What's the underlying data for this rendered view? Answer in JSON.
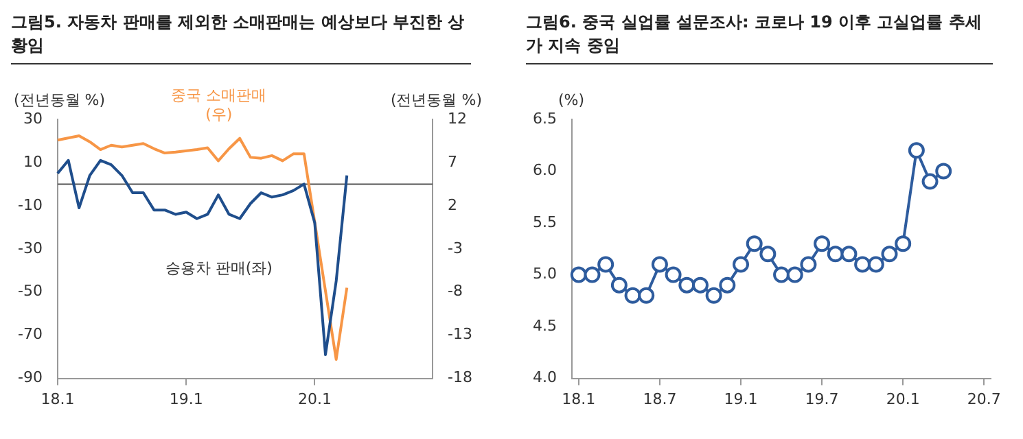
{
  "chart_data": [
    {
      "type": "line",
      "title": "그림5. 자동차 판매를 제외한 소매판매는 예상보다 부진한 상황임",
      "ylabel": "(전년동월 %)",
      "y2label": "(전년동월 %)",
      "categories": [
        "18.1",
        null,
        null,
        null,
        null,
        null,
        null,
        null,
        null,
        null,
        null,
        null,
        "19.1",
        null,
        null,
        null,
        null,
        null,
        null,
        null,
        null,
        null,
        null,
        null,
        "20.1",
        null,
        null,
        null,
        null,
        null,
        null,
        null,
        null,
        null,
        null,
        null
      ],
      "series": [
        {
          "name": "승용차 판매(좌)",
          "color": "#1f4e8c",
          "values": [
            5,
            11,
            -11,
            4,
            11,
            9,
            4,
            -4,
            -4,
            -12,
            -12,
            -14,
            -13,
            -16,
            -14,
            -5,
            -14,
            -16,
            -9,
            -4,
            -6,
            -5,
            -3,
            0,
            -18,
            -79,
            -45,
            4,
            null,
            null,
            null,
            null,
            null,
            null,
            null,
            null
          ]
        },
        {
          "name": "중국 소매판매 (우)",
          "color": "#f79646",
          "axis": "y2",
          "values": [
            9.6,
            null,
            10.1,
            9.4,
            8.5,
            9.0,
            8.8,
            9.0,
            9.2,
            8.6,
            8.1,
            8.2,
            null,
            8.5,
            8.7,
            7.2,
            8.6,
            9.8,
            7.6,
            7.5,
            7.8,
            7.2,
            8.0,
            8.0,
            null,
            null,
            -15.8,
            -7.5,
            null,
            null,
            null,
            null,
            null,
            null,
            null,
            null
          ]
        }
      ],
      "ylim": [
        -90,
        30
      ],
      "yticks": [
        -90,
        -70,
        -50,
        -30,
        -10,
        10,
        30
      ],
      "y2lim": [
        -18,
        12
      ],
      "y2ticks": [
        -18,
        -13,
        -8,
        -3,
        2,
        7,
        12
      ],
      "ref_lines": [
        {
          "axis": "y",
          "value": 0,
          "color": "#555555"
        }
      ],
      "grid": false,
      "legend": false,
      "marker": "none",
      "line_style": "solid"
    },
    {
      "type": "line",
      "title": "그림6. 중국 실업률 설문조사: 코로나 19 이후 고실업률 추세가 지속 중임",
      "ylabel": "(%)",
      "categories": [
        "18.1",
        null,
        null,
        null,
        null,
        null,
        "18.7",
        null,
        null,
        null,
        null,
        null,
        "19.1",
        null,
        null,
        null,
        null,
        null,
        "19.7",
        null,
        null,
        null,
        null,
        null,
        "20.1",
        null,
        null,
        null,
        null,
        null,
        "20.7"
      ],
      "series": [
        {
          "color": "#2e5c9e",
          "values": [
            5.0,
            5.0,
            5.1,
            4.9,
            4.8,
            4.8,
            5.1,
            5.0,
            4.9,
            4.9,
            4.8,
            4.9,
            5.1,
            5.3,
            5.2,
            5.0,
            5.0,
            5.1,
            5.3,
            5.2,
            5.2,
            5.1,
            5.1,
            5.2,
            5.3,
            6.2,
            5.9,
            6.0,
            null,
            null,
            null
          ]
        }
      ],
      "ylim": [
        4.0,
        6.5
      ],
      "yticks": [
        {
          "value": 4.0,
          "label": "4.0"
        },
        {
          "value": 4.5,
          "label": "4.5"
        },
        {
          "value": 5.0,
          "label": "5.0"
        },
        {
          "value": 5.5,
          "label": "5.5"
        },
        {
          "value": 6.0,
          "label": "6.0"
        },
        {
          "value": 6.5,
          "label": "6.5"
        }
      ],
      "grid": false,
      "legend": false,
      "marker": "circle",
      "line_style": "solid"
    }
  ]
}
